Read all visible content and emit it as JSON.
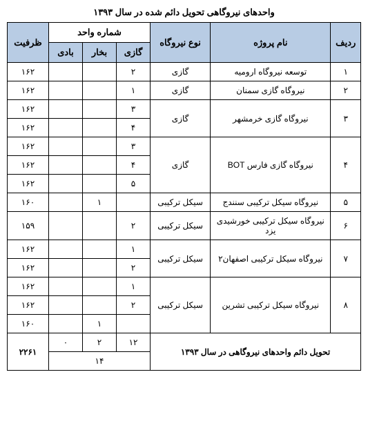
{
  "title": "واحدهای نیروگاهی تحویل دائم شده در سال ۱۳۹۳",
  "headers": {
    "index": "ردیف",
    "name": "نام پروژه",
    "type": "نوع نیروگاه",
    "unit_group": "شماره واحد",
    "gas": "گازی",
    "steam": "بخار",
    "wind": "بادی",
    "capacity": "ظرفیت"
  },
  "rows": [
    {
      "idx": "۱",
      "name": "توسعه نیروگاه ارومیه",
      "type": "گازی",
      "gas": "۲",
      "steam": "",
      "wind": "",
      "cap": "۱۶۲"
    },
    {
      "idx": "۲",
      "name": "نیروگاه گازی سمنان",
      "type": "گازی",
      "gas": "۱",
      "steam": "",
      "wind": "",
      "cap": "۱۶۲"
    },
    {
      "idx": "۳",
      "name": "نیروگاه گازی خرمشهر",
      "type": "گازی",
      "gas": "۳",
      "steam": "",
      "wind": "",
      "cap": "۱۶۲",
      "rowspan": 2
    },
    {
      "gas": "۴",
      "steam": "",
      "wind": "",
      "cap": "۱۶۲"
    },
    {
      "idx": "۴",
      "name": "نیروگاه گازی فارس BOT",
      "type": "گازی",
      "gas": "۳",
      "steam": "",
      "wind": "",
      "cap": "۱۶۲",
      "rowspan": 3
    },
    {
      "gas": "۴",
      "steam": "",
      "wind": "",
      "cap": "۱۶۲"
    },
    {
      "gas": "۵",
      "steam": "",
      "wind": "",
      "cap": "۱۶۲"
    },
    {
      "idx": "۵",
      "name": "نیروگاه سیکل ترکیبی سنندج",
      "type": "سیکل ترکیبی",
      "gas": "",
      "steam": "۱",
      "wind": "",
      "cap": "۱۶۰"
    },
    {
      "idx": "۶",
      "name": "نیروگاه سیکل ترکیبی خورشیدی یزد",
      "type": "سیکل ترکیبی",
      "gas": "۲",
      "steam": "",
      "wind": "",
      "cap": "۱۵۹"
    },
    {
      "idx": "۷",
      "name": "نیروگاه سیکل ترکیبی اصفهان۲",
      "type": "سیکل ترکیبی",
      "gas": "۱",
      "steam": "",
      "wind": "",
      "cap": "۱۶۲",
      "rowspan": 2
    },
    {
      "gas": "۲",
      "steam": "",
      "wind": "",
      "cap": "۱۶۲"
    },
    {
      "idx": "۸",
      "name": "نیروگاه سیکل ترکیبی تشرین",
      "type": "سیکل ترکیبی",
      "gas": "۱",
      "steam": "",
      "wind": "",
      "cap": "۱۶۲",
      "rowspan": 3
    },
    {
      "gas": "۲",
      "steam": "",
      "wind": "",
      "cap": "۱۶۲"
    },
    {
      "gas": "",
      "steam": "۱",
      "wind": "",
      "cap": "۱۶۰"
    }
  ],
  "summary": {
    "label": "تحویل دائم واحدهای نیروگاهی در سال ۱۳۹۳",
    "gas": "۱۲",
    "steam": "۲",
    "wind": "۰",
    "cap": "۲۲۶۱",
    "total": "۱۴"
  }
}
